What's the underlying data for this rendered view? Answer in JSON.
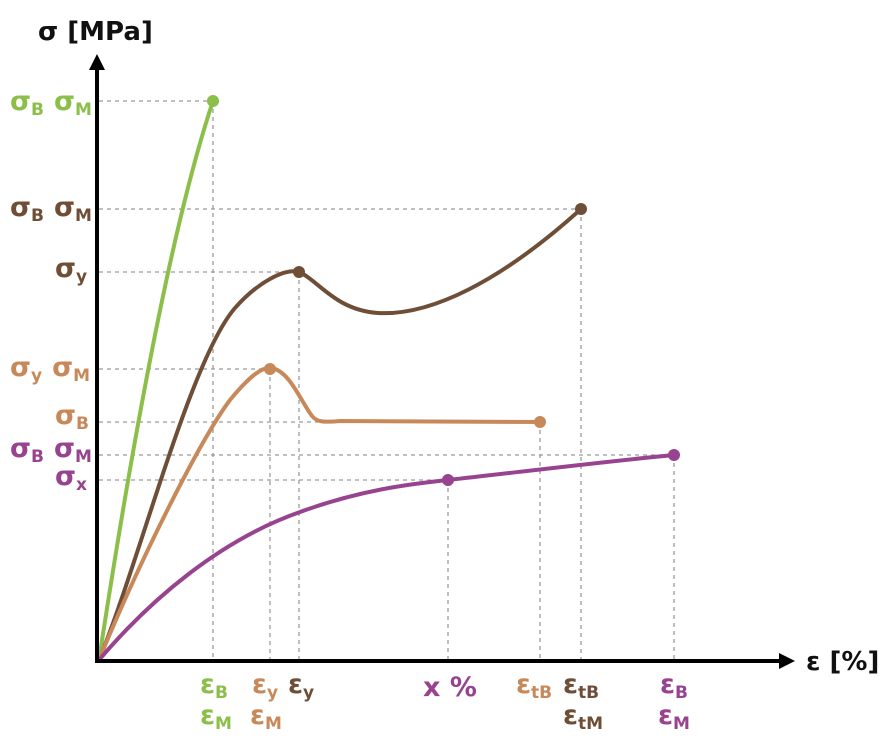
{
  "axes": {
    "y_title": "σ [MPa]",
    "x_title": "ε [%]"
  },
  "colors": {
    "green": "#8bbf4a",
    "dark_brown": "#6f4e37",
    "tan": "#c8895a",
    "purple": "#97438f",
    "axis": "#000000",
    "guide": "#9a9a9a"
  },
  "curves": [
    {
      "name": "green-curve",
      "color": "green"
    },
    {
      "name": "dark-brown-curve",
      "color": "dark_brown"
    },
    {
      "name": "tan-curve",
      "color": "tan"
    },
    {
      "name": "purple-curve",
      "color": "purple"
    }
  ],
  "y_labels": {
    "green": {
      "base1": "σ",
      "sub1": "B",
      "base2": "σ",
      "sub2": "M"
    },
    "brown_break": {
      "base1": "σ",
      "sub1": "B",
      "base2": "σ",
      "sub2": "M"
    },
    "brown_yield": {
      "base1": "σ",
      "sub1": "y"
    },
    "tan_yield": {
      "base1": "σ",
      "sub1": "y",
      "base2": "σ",
      "sub2": "M"
    },
    "tan_break": {
      "base1": "σ",
      "sub1": "B"
    },
    "purple_break": {
      "base1": "σ",
      "sub1": "B",
      "base2": "σ",
      "sub2": "M"
    },
    "purple_x": {
      "base1": "σ",
      "sub1": "x"
    }
  },
  "x_labels": {
    "green": {
      "line1_base": "ε",
      "line1_sub": "B",
      "line2_base": "ε",
      "line2_sub": "M"
    },
    "tan_yield": {
      "line1_base": "ε",
      "line1_sub": "y",
      "line2_base": "ε",
      "line2_sub": "M"
    },
    "brown_yield": {
      "line1_base": "ε",
      "line1_sub": "y"
    },
    "purple_x": {
      "text": "x %"
    },
    "tan_break": {
      "line1_base": "ε",
      "line1_sub": "tB"
    },
    "brown_break": {
      "line1_base": "ε",
      "line1_sub": "tB",
      "line2_base": "ε",
      "line2_sub": "tM"
    },
    "purple_break": {
      "line1_base": "ε",
      "line1_sub": "B",
      "line2_base": "ε",
      "line2_sub": "M"
    }
  }
}
